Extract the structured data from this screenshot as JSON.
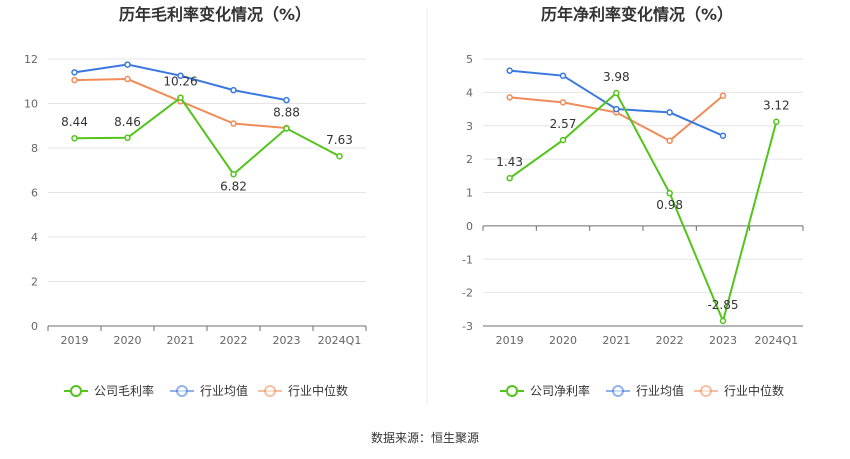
{
  "source_label": "数据来源：恒生聚源",
  "colors": {
    "company": "#52c41a",
    "industry_avg": "#3a78e0",
    "industry_median": "#f08c5a",
    "grid": "#e5e5e5",
    "axis": "#6e6e6e"
  },
  "chart_data": [
    {
      "type": "line",
      "title": "历年毛利率变化情况（%）",
      "categories": [
        "2019",
        "2020",
        "2021",
        "2022",
        "2023",
        "2024Q1"
      ],
      "ylim": [
        0,
        12
      ],
      "yticks": [
        0,
        2,
        4,
        6,
        8,
        10,
        12
      ],
      "grid": true,
      "legend": "bottom",
      "series": [
        {
          "name": "公司毛利率",
          "key": "company",
          "values": [
            8.44,
            8.46,
            10.26,
            6.82,
            8.88,
            7.63
          ],
          "labels": [
            "8.44",
            "8.46",
            "10.26",
            "6.82",
            "8.88",
            "7.63"
          ]
        },
        {
          "name": "行业均值",
          "key": "industry_avg",
          "values": [
            11.4,
            11.75,
            11.25,
            10.6,
            10.15,
            null
          ]
        },
        {
          "name": "行业中位数",
          "key": "industry_median",
          "values": [
            11.05,
            11.1,
            10.1,
            9.1,
            8.9,
            null
          ]
        }
      ]
    },
    {
      "type": "line",
      "title": "历年净利率变化情况（%）",
      "categories": [
        "2019",
        "2020",
        "2021",
        "2022",
        "2023",
        "2024Q1"
      ],
      "ylim": [
        -3,
        5
      ],
      "yticks": [
        -3,
        -2,
        -1,
        0,
        1,
        2,
        3,
        4,
        5
      ],
      "grid": true,
      "legend": "bottom",
      "series": [
        {
          "name": "公司净利率",
          "key": "company",
          "values": [
            1.43,
            2.57,
            3.98,
            0.98,
            -2.85,
            3.12
          ],
          "labels": [
            "1.43",
            "2.57",
            "3.98",
            "0.98",
            "-2.85",
            "3.12"
          ]
        },
        {
          "name": "行业均值",
          "key": "industry_avg",
          "values": [
            4.65,
            4.5,
            3.5,
            3.4,
            2.7,
            null
          ]
        },
        {
          "name": "行业中位数",
          "key": "industry_median",
          "values": [
            3.85,
            3.7,
            3.4,
            2.55,
            3.9,
            null
          ]
        }
      ]
    }
  ]
}
